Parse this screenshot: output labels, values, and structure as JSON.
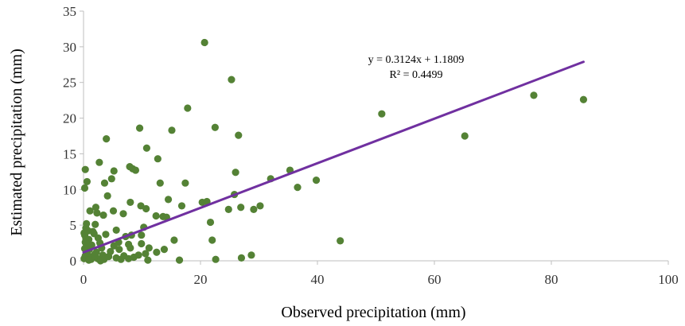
{
  "chart_data": {
    "type": "scatter",
    "title": "",
    "xlabel": "Observed precipitation (mm)",
    "ylabel": "Estimated precipitation (mm)",
    "xlim": [
      0,
      100
    ],
    "ylim": [
      0,
      35
    ],
    "x_ticks": [
      "0",
      "20",
      "40",
      "60",
      "80",
      "100"
    ],
    "y_ticks": [
      "0",
      "5",
      "10",
      "15",
      "20",
      "25",
      "30",
      "35"
    ],
    "grid": false,
    "legend": "none",
    "point_color": "#548235",
    "trendline_color": "#7030A0",
    "trendline": {
      "slope": 0.3124,
      "intercept": 1.1809,
      "x_range": [
        0,
        85.5
      ],
      "equation": "y = 0.3124x + 1.1809",
      "r2": "R² = 0.4499"
    },
    "points": [
      {
        "x": 20.7,
        "y": 30.6
      },
      {
        "x": 25.3,
        "y": 25.4
      },
      {
        "x": 77.0,
        "y": 23.2
      },
      {
        "x": 85.5,
        "y": 22.6
      },
      {
        "x": 17.8,
        "y": 21.4
      },
      {
        "x": 51.0,
        "y": 20.6
      },
      {
        "x": 9.6,
        "y": 18.6
      },
      {
        "x": 22.5,
        "y": 18.7
      },
      {
        "x": 15.1,
        "y": 18.3
      },
      {
        "x": 26.5,
        "y": 17.6
      },
      {
        "x": 65.2,
        "y": 17.5
      },
      {
        "x": 3.9,
        "y": 17.1
      },
      {
        "x": 10.8,
        "y": 15.8
      },
      {
        "x": 12.7,
        "y": 14.3
      },
      {
        "x": 2.7,
        "y": 13.8
      },
      {
        "x": 7.9,
        "y": 13.2
      },
      {
        "x": 8.4,
        "y": 12.9
      },
      {
        "x": 0.3,
        "y": 12.8
      },
      {
        "x": 5.2,
        "y": 12.6
      },
      {
        "x": 8.9,
        "y": 12.7
      },
      {
        "x": 35.3,
        "y": 12.7
      },
      {
        "x": 26.0,
        "y": 12.4
      },
      {
        "x": 4.8,
        "y": 11.5
      },
      {
        "x": 32.0,
        "y": 11.5
      },
      {
        "x": 39.8,
        "y": 11.3
      },
      {
        "x": 0.6,
        "y": 11.1
      },
      {
        "x": 3.6,
        "y": 10.9
      },
      {
        "x": 13.1,
        "y": 10.9
      },
      {
        "x": 17.4,
        "y": 10.9
      },
      {
        "x": 0.2,
        "y": 10.2
      },
      {
        "x": 36.6,
        "y": 10.3
      },
      {
        "x": 25.8,
        "y": 9.3
      },
      {
        "x": 4.1,
        "y": 9.1
      },
      {
        "x": 14.5,
        "y": 8.6
      },
      {
        "x": 8.0,
        "y": 8.2
      },
      {
        "x": 20.3,
        "y": 8.2
      },
      {
        "x": 21.1,
        "y": 8.3
      },
      {
        "x": 9.8,
        "y": 7.7
      },
      {
        "x": 16.8,
        "y": 7.7
      },
      {
        "x": 30.2,
        "y": 7.7
      },
      {
        "x": 2.1,
        "y": 7.5
      },
      {
        "x": 10.7,
        "y": 7.3
      },
      {
        "x": 24.8,
        "y": 7.2
      },
      {
        "x": 26.9,
        "y": 7.5
      },
      {
        "x": 29.1,
        "y": 7.2
      },
      {
        "x": 1.1,
        "y": 7.0
      },
      {
        "x": 5.1,
        "y": 7.0
      },
      {
        "x": 2.3,
        "y": 6.7
      },
      {
        "x": 6.8,
        "y": 6.6
      },
      {
        "x": 3.4,
        "y": 6.4
      },
      {
        "x": 12.4,
        "y": 6.3
      },
      {
        "x": 13.6,
        "y": 6.2
      },
      {
        "x": 14.2,
        "y": 6.1
      },
      {
        "x": 21.7,
        "y": 5.4
      },
      {
        "x": 0.5,
        "y": 5.2
      },
      {
        "x": 2.0,
        "y": 5.1
      },
      {
        "x": 0.4,
        "y": 4.6
      },
      {
        "x": 10.3,
        "y": 4.7
      },
      {
        "x": 1.6,
        "y": 4.1
      },
      {
        "x": 5.6,
        "y": 4.3
      },
      {
        "x": 0.2,
        "y": 3.6
      },
      {
        "x": 3.8,
        "y": 3.7
      },
      {
        "x": 7.2,
        "y": 3.4
      },
      {
        "x": 8.2,
        "y": 3.6
      },
      {
        "x": 9.9,
        "y": 3.6
      },
      {
        "x": 0.4,
        "y": 3.1
      },
      {
        "x": 0.9,
        "y": 3.0
      },
      {
        "x": 2.5,
        "y": 3.2
      },
      {
        "x": 0.3,
        "y": 2.6
      },
      {
        "x": 2.8,
        "y": 2.5
      },
      {
        "x": 6.0,
        "y": 2.6
      },
      {
        "x": 15.5,
        "y": 2.9
      },
      {
        "x": 22.0,
        "y": 2.9
      },
      {
        "x": 43.9,
        "y": 2.8
      },
      {
        "x": 1.4,
        "y": 2.2
      },
      {
        "x": 5.2,
        "y": 2.1
      },
      {
        "x": 7.7,
        "y": 2.3
      },
      {
        "x": 9.9,
        "y": 2.4
      },
      {
        "x": 0.2,
        "y": 1.7
      },
      {
        "x": 1.0,
        "y": 1.6
      },
      {
        "x": 3.1,
        "y": 1.8
      },
      {
        "x": 6.1,
        "y": 1.6
      },
      {
        "x": 8.0,
        "y": 1.8
      },
      {
        "x": 11.2,
        "y": 1.8
      },
      {
        "x": 0.6,
        "y": 1.1
      },
      {
        "x": 2.2,
        "y": 1.2
      },
      {
        "x": 4.6,
        "y": 1.3
      },
      {
        "x": 10.6,
        "y": 1.0
      },
      {
        "x": 13.8,
        "y": 1.6
      },
      {
        "x": 12.5,
        "y": 1.2
      },
      {
        "x": 0.3,
        "y": 0.7
      },
      {
        "x": 1.5,
        "y": 0.6
      },
      {
        "x": 3.3,
        "y": 0.8
      },
      {
        "x": 6.9,
        "y": 0.7
      },
      {
        "x": 9.4,
        "y": 0.8
      },
      {
        "x": 28.7,
        "y": 0.8
      },
      {
        "x": 0.1,
        "y": 0.3
      },
      {
        "x": 1.3,
        "y": 0.2
      },
      {
        "x": 2.4,
        "y": 0.3
      },
      {
        "x": 3.5,
        "y": 0.2
      },
      {
        "x": 5.6,
        "y": 0.4
      },
      {
        "x": 7.7,
        "y": 0.3
      },
      {
        "x": 11.0,
        "y": 0.1
      },
      {
        "x": 16.4,
        "y": 0.1
      },
      {
        "x": 22.6,
        "y": 0.2
      },
      {
        "x": 27.0,
        "y": 0.4
      },
      {
        "x": 0.1,
        "y": 3.9
      },
      {
        "x": 1.8,
        "y": 3.8
      },
      {
        "x": 0.8,
        "y": 4.2
      },
      {
        "x": 0.5,
        "y": 2.1
      },
      {
        "x": 1.9,
        "y": 0.9
      },
      {
        "x": 4.3,
        "y": 0.6
      },
      {
        "x": 6.4,
        "y": 0.2
      },
      {
        "x": 8.6,
        "y": 0.5
      },
      {
        "x": 0.9,
        "y": 0.1
      },
      {
        "x": 2.9,
        "y": 0.0
      }
    ]
  }
}
